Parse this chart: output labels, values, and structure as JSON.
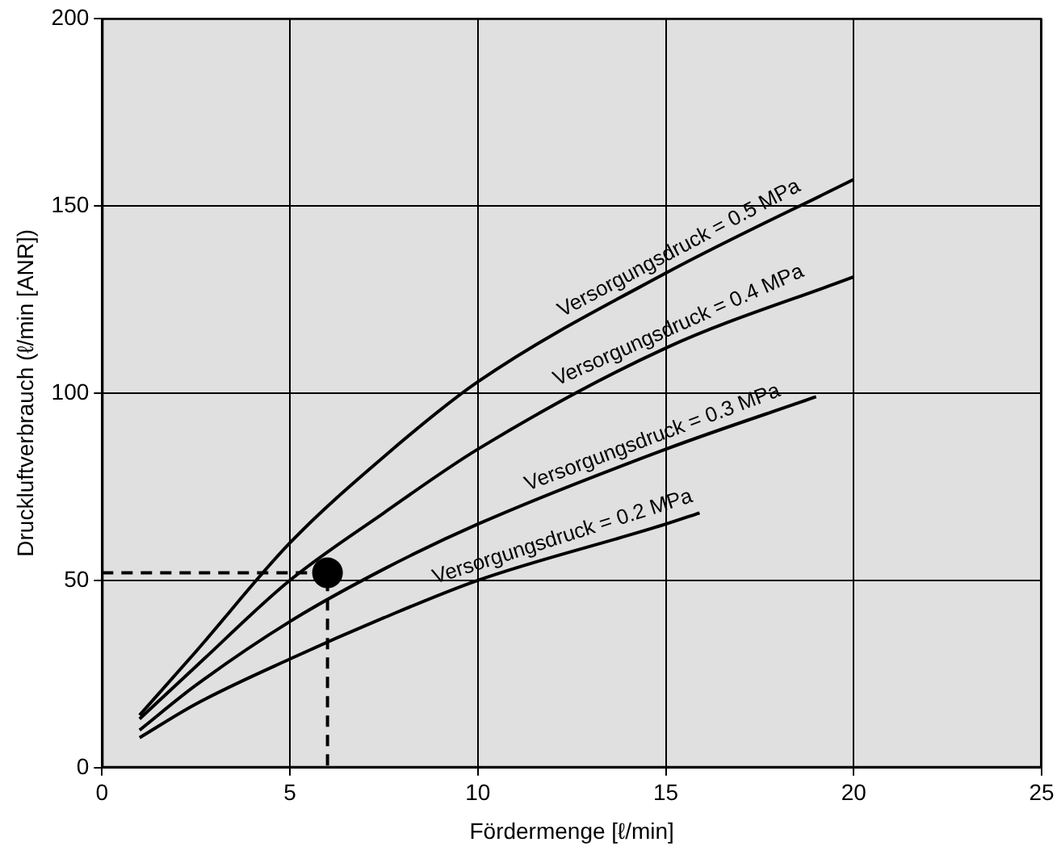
{
  "chart_data": {
    "type": "line",
    "xlabel": "Fördermenge [ℓ/min]",
    "ylabel": "Druckluftverbrauch (ℓ/min [ANR])",
    "xlim": [
      0,
      25
    ],
    "xticks": [
      0,
      5,
      10,
      15,
      20,
      25
    ],
    "ylim": [
      0,
      200
    ],
    "yticks": [
      0,
      50,
      100,
      150,
      200
    ],
    "grid": true,
    "legend": false,
    "marker": "none",
    "line_style": "solid",
    "series": [
      {
        "name": "Versorgungsdruck = 0.5 MPa",
        "color": "#000000",
        "x": [
          1,
          2.5,
          5,
          7.5,
          10,
          15,
          20
        ],
        "values": [
          14,
          31,
          60,
          83,
          103,
          132,
          157
        ]
      },
      {
        "name": "Versorgungsdruck = 0.4 MPa",
        "color": "#000000",
        "x": [
          1,
          2.5,
          5,
          7.5,
          10,
          15,
          20
        ],
        "values": [
          13,
          27,
          50,
          68,
          85,
          112,
          131
        ]
      },
      {
        "name": "Versorgungsdruck = 0.3 MPa",
        "color": "#000000",
        "x": [
          1,
          2.5,
          5,
          7.5,
          10,
          15,
          19
        ],
        "values": [
          10,
          22,
          39,
          53,
          65,
          85,
          99
        ]
      },
      {
        "name": "Versorgungsdruck = 0.2 MPa",
        "color": "#000000",
        "x": [
          1,
          2.5,
          5,
          7.5,
          10,
          15,
          15.9
        ],
        "values": [
          8,
          17,
          29,
          40,
          50,
          65,
          68
        ]
      },
      {
        "type": "line",
        "line_style": "dashed",
        "color": "#000000",
        "x": [
          0,
          6,
          6
        ],
        "values": [
          52,
          52,
          0
        ]
      },
      {
        "type": "scatter",
        "marker": "circle",
        "color": "#000000",
        "x": [
          6
        ],
        "values": [
          52
        ]
      }
    ]
  }
}
